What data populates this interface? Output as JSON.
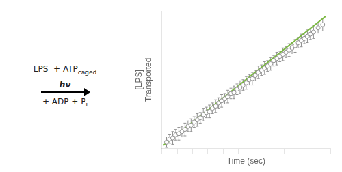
{
  "chart_data": {
    "type": "scatter",
    "xlabel": "Time (sec)",
    "ylabel": [
      "[LPS]",
      "Transported"
    ],
    "annotations": [
      "LPS",
      "+ ATP",
      "caged",
      "hν",
      "+ ADP + P",
      "i"
    ],
    "series": [
      {
        "type": "scatter",
        "marker": "circle",
        "color": "#909090",
        "x": [
          0.3,
          0.5,
          0.7,
          0.9,
          1.1,
          1.3,
          1.5,
          1.7,
          1.9,
          2.1,
          2.3,
          2.5,
          2.7,
          2.9,
          3.1,
          3.3,
          3.5,
          3.7,
          3.9,
          4.1,
          4.3,
          4.5,
          4.7,
          4.9,
          5.1,
          5.3,
          5.5,
          5.7,
          5.9,
          6.1,
          6.3,
          6.5,
          6.7,
          6.9,
          7.1,
          7.3,
          7.5,
          7.7,
          7.9,
          8.1,
          8.3,
          8.5,
          8.7,
          8.9,
          9.1,
          9.3,
          9.5,
          9.7,
          9.9,
          10.2,
          10.5
        ],
        "values": [
          0.06,
          0.09,
          0.1,
          0.13,
          0.14,
          0.16,
          0.18,
          0.21,
          0.22,
          0.25,
          0.27,
          0.29,
          0.32,
          0.34,
          0.35,
          0.38,
          0.4,
          0.43,
          0.45,
          0.47,
          0.49,
          0.52,
          0.53,
          0.56,
          0.58,
          0.6,
          0.62,
          0.65,
          0.66,
          0.69,
          0.72,
          0.74,
          0.76,
          0.78,
          0.8,
          0.83,
          0.85,
          0.87,
          0.89,
          0.91,
          0.93,
          0.95,
          0.97,
          1.0,
          1.02,
          1.04,
          1.06,
          1.08,
          1.1,
          1.14,
          1.17
        ],
        "yerr": [
          0.05,
          0.04,
          0.06,
          0.05,
          0.06,
          0.05,
          0.06,
          0.05,
          0.06,
          0.05,
          0.06,
          0.05,
          0.06,
          0.05,
          0.06,
          0.05,
          0.06,
          0.05,
          0.06,
          0.05,
          0.06,
          0.05,
          0.06,
          0.05,
          0.06,
          0.05,
          0.06,
          0.05,
          0.06,
          0.05,
          0.06,
          0.05,
          0.06,
          0.05,
          0.06,
          0.05,
          0.06,
          0.05,
          0.06,
          0.05,
          0.06,
          0.05,
          0.06,
          0.05,
          0.06,
          0.05,
          0.06,
          0.05,
          0.06,
          0.05,
          0.06
        ]
      },
      {
        "type": "line",
        "line_style": "solid",
        "color": "#7ab840",
        "x": [
          0.1,
          10.7
        ],
        "values": [
          0.0315,
          1.2505
        ]
      }
    ],
    "xlim": [
      0,
      11
    ],
    "ylim": [
      0.0,
      1.3
    ],
    "xticks": [
      0,
      1,
      2,
      3,
      4,
      5,
      6,
      7,
      8,
      9,
      10,
      11
    ],
    "yticks": [],
    "tick_labels": false,
    "grid": false
  }
}
